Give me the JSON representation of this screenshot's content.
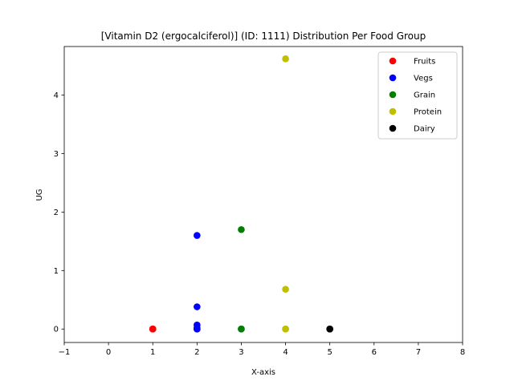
{
  "chart_data": {
    "type": "scatter",
    "title": "[Vitamin D2 (ergocalciferol)] (ID: 1111) Distribution Per Food Group",
    "xlabel": "X-axis",
    "ylabel": "UG",
    "xlim": [
      -1,
      8
    ],
    "ylim": [
      -0.23,
      4.83
    ],
    "xticks": [
      -1,
      0,
      1,
      2,
      3,
      4,
      5,
      6,
      7,
      8
    ],
    "yticks": [
      0,
      1,
      2,
      3,
      4
    ],
    "grid": false,
    "legend_position": "top-right",
    "series": [
      {
        "name": "Fruits",
        "color": "#ff0000",
        "points": [
          [
            1,
            0
          ],
          [
            1,
            0
          ],
          [
            1,
            0
          ]
        ]
      },
      {
        "name": "Vegs",
        "color": "#0000ff",
        "points": [
          [
            2,
            0
          ],
          [
            2,
            0
          ],
          [
            2,
            0.02
          ],
          [
            2,
            0.07
          ],
          [
            2,
            0.38
          ],
          [
            2,
            1.6
          ]
        ]
      },
      {
        "name": "Grain",
        "color": "#008000",
        "points": [
          [
            3,
            0
          ],
          [
            3,
            0
          ],
          [
            3,
            1.7
          ]
        ]
      },
      {
        "name": "Protein",
        "color": "#bfbf00",
        "points": [
          [
            4,
            0
          ],
          [
            4,
            0
          ],
          [
            4,
            0.68
          ],
          [
            4,
            4.62
          ]
        ]
      },
      {
        "name": "Dairy",
        "color": "#000000",
        "points": [
          [
            5,
            0
          ],
          [
            5,
            0
          ]
        ]
      }
    ]
  }
}
